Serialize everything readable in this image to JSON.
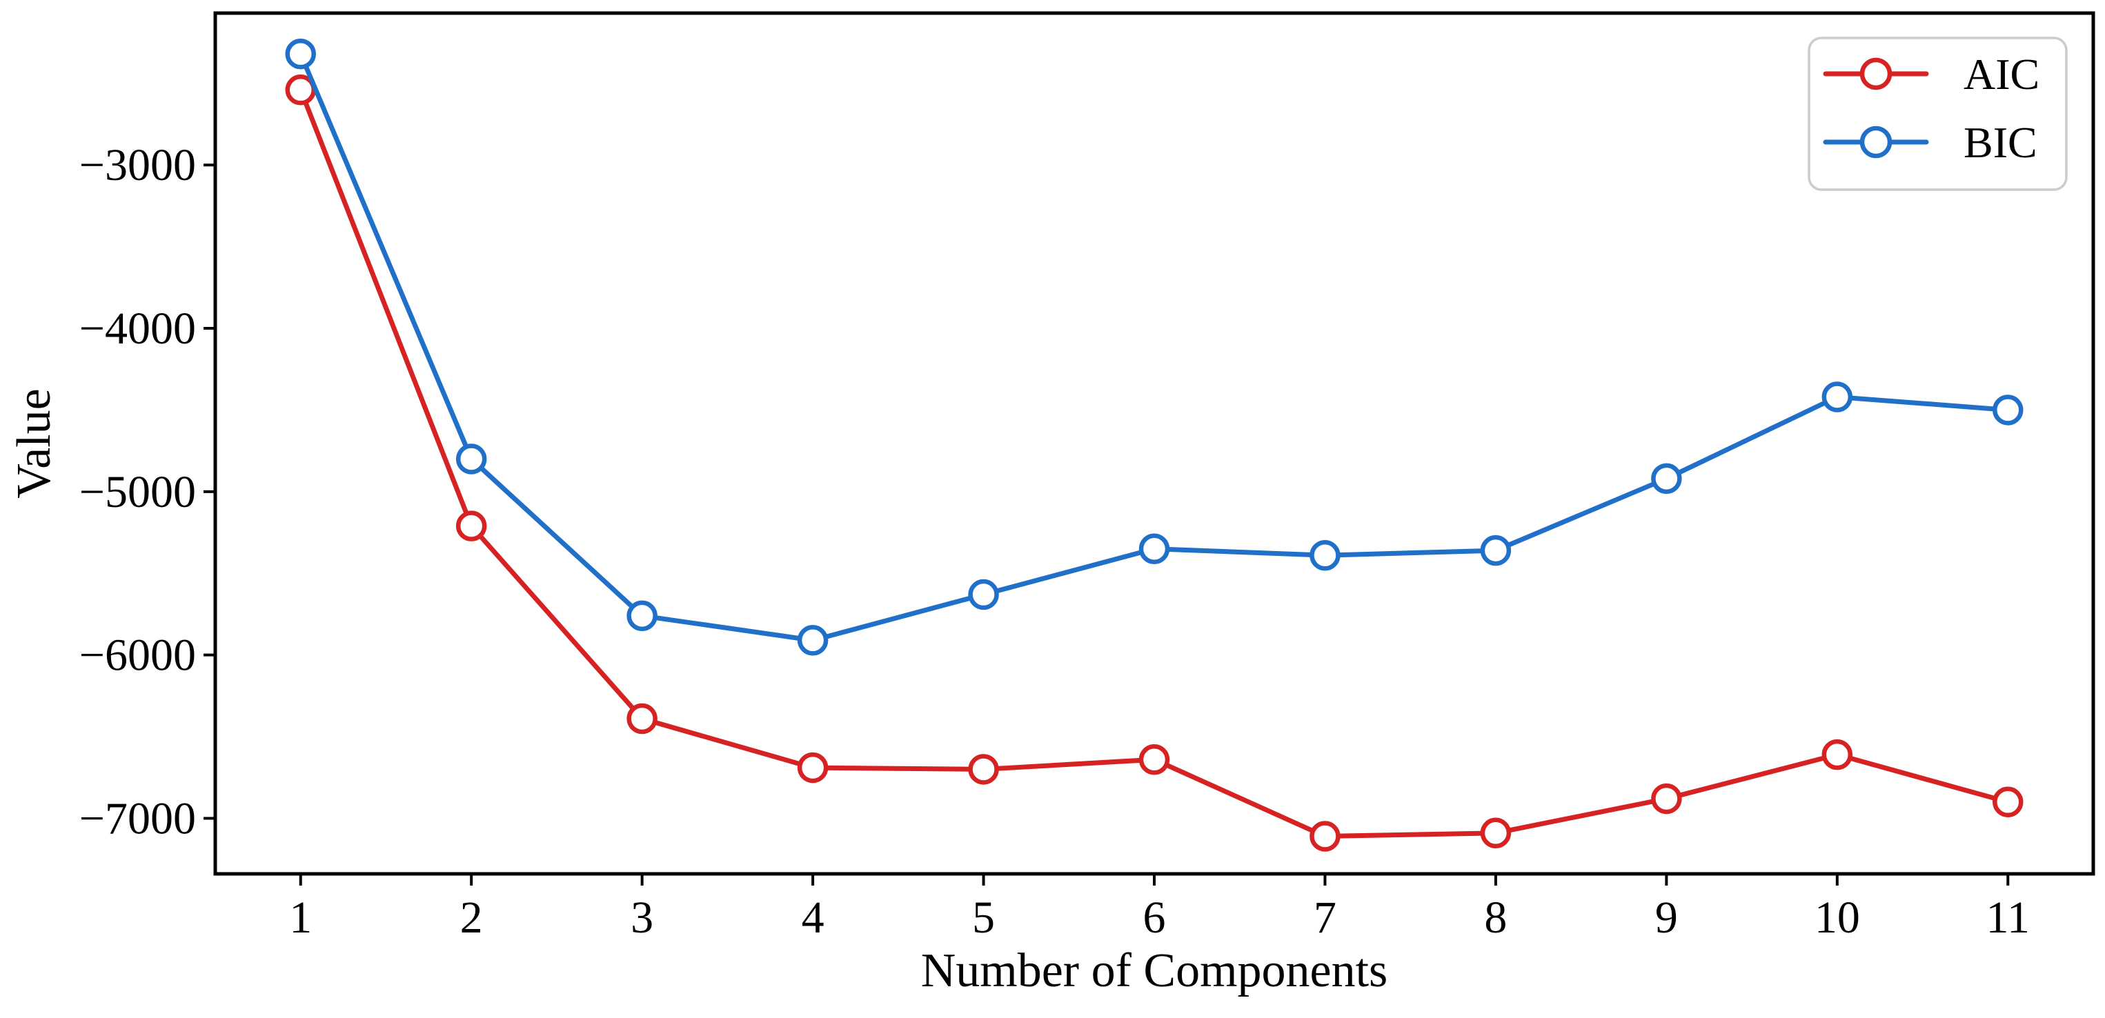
{
  "figure": {
    "background": "#ffffff",
    "spine_color": "#000000",
    "text_color": "#000000"
  },
  "legend": {
    "position": "upper right",
    "border_color": "#cccccc",
    "entries": [
      "AIC",
      "BIC"
    ]
  },
  "chart_data": {
    "type": "line",
    "title": "",
    "xlabel": "Number of Components",
    "ylabel": "Value",
    "marker": "open-circle",
    "grid": false,
    "x": [
      1,
      2,
      3,
      4,
      5,
      6,
      7,
      8,
      9,
      10,
      11
    ],
    "x_tick_labels": [
      "1",
      "2",
      "3",
      "4",
      "5",
      "6",
      "7",
      "8",
      "9",
      "10",
      "11"
    ],
    "y_ticks": [
      -3000,
      -4000,
      -5000,
      -6000,
      -7000
    ],
    "y_tick_labels": [
      "−3000",
      "−4000",
      "−5000",
      "−6000",
      "−7000"
    ],
    "xlim": [
      0.5,
      11.5
    ],
    "ylim": [
      -7340,
      -2070
    ],
    "series": [
      {
        "name": "AIC",
        "color": "#d62222",
        "values": [
          -2540,
          -5210,
          -6390,
          -6690,
          -6700,
          -6640,
          -7110,
          -7090,
          -6880,
          -6610,
          -6900
        ]
      },
      {
        "name": "BIC",
        "color": "#2070c9",
        "values": [
          -2320,
          -4800,
          -5760,
          -5910,
          -5630,
          -5350,
          -5390,
          -5360,
          -4920,
          -4420,
          -4500
        ]
      }
    ]
  }
}
